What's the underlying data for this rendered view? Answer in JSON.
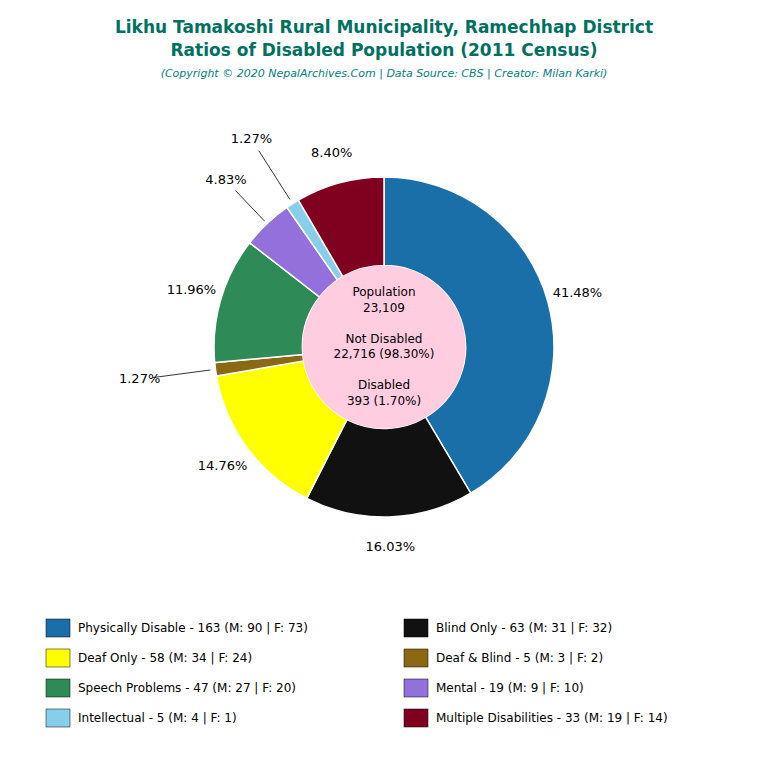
{
  "chart_data": {
    "type": "pie",
    "title": "Likhu Tamakoshi Rural Municipality, Ramechhap District\nRatios of Disabled Population (2011 Census)",
    "subtitle": "(Copyright © 2020 NepalArchives.Com | Data Source: CBS | Creator: Milan Karki)",
    "categories": [
      "Physically Disable - 163 (M: 90 | F: 73)",
      "Blind Only - 63 (M: 31 | F: 32)",
      "Deaf Only - 58 (M: 34 | F: 24)",
      "Deaf & Blind - 5 (M: 3 | F: 2)",
      "Speech Problems - 47 (M: 27 | F: 20)",
      "Mental - 19 (M: 9 | F: 10)",
      "Intellectual - 5 (M: 4 | F: 1)",
      "Multiple Disabilities - 33 (M: 19 | F: 14)"
    ],
    "values": [
      41.48,
      16.03,
      14.76,
      1.27,
      11.96,
      4.83,
      1.27,
      8.4
    ],
    "value_labels": [
      "41.48%",
      "16.03%",
      "14.76%",
      "1.27%",
      "11.96%",
      "4.83%",
      "1.27%",
      "8.40%"
    ],
    "colors": [
      "#1a6fa8",
      "#111111",
      "#ffff00",
      "#8B6914",
      "#2e8b57",
      "#9370db",
      "#87ceeb",
      "#800020"
    ],
    "data_labels": true,
    "legend": "bottom",
    "annotations": [
      "Population",
      "23,109",
      "Not Disabled",
      "22,716 (98.30%)",
      "Disabled",
      "393 (1.70%)"
    ]
  }
}
